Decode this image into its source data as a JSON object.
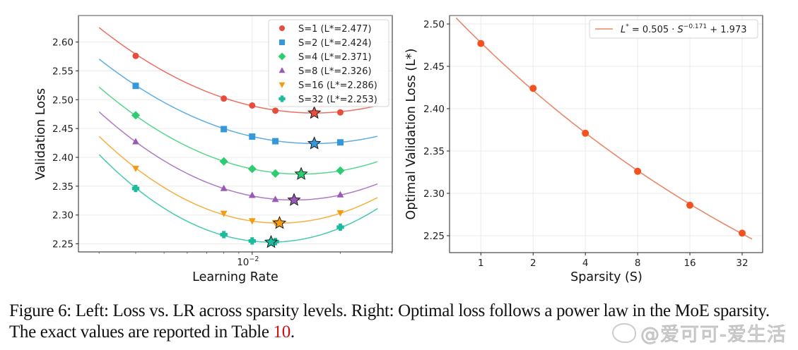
{
  "chart_data": [
    {
      "type": "line",
      "title": "",
      "xlabel": "Learning Rate",
      "ylabel": "Validation Loss",
      "xscale": "log",
      "xlim": [
        0.00255,
        0.0301
      ],
      "ylim": [
        2.236,
        2.646
      ],
      "yticks": [
        2.25,
        2.3,
        2.35,
        2.4,
        2.45,
        2.5,
        2.55,
        2.6
      ],
      "ytick_labels": [
        "2.25",
        "2.30",
        "2.35",
        "2.40",
        "2.45",
        "2.50",
        "2.55",
        "2.60"
      ],
      "xticks_major": [
        0.01
      ],
      "xtick_major_labels": [
        "10^-2"
      ],
      "xticks_minor": [
        0.003,
        0.004,
        0.005,
        0.006,
        0.007,
        0.008,
        0.009,
        0.02,
        0.03
      ],
      "grid": true,
      "legend_position": "top-right",
      "x": [
        0.004,
        0.008,
        0.01,
        0.012,
        0.02
      ],
      "series": [
        {
          "name": "S=1 (L*=2.477)",
          "marker": "circle",
          "color": "#e74c3c",
          "values": [
            2.576,
            2.502,
            2.49,
            2.481,
            2.478
          ],
          "optimum": {
            "lr": 0.0163,
            "loss": 2.477
          },
          "fit": {
            "vertex_lr": 0.0163,
            "vertex_loss": 2.477,
            "curvature": 0.274,
            "lr_range": [
              0.003,
              0.0268
            ]
          }
        },
        {
          "name": "S=2 (L*=2.424)",
          "marker": "square",
          "color": "#3498db",
          "values": [
            2.524,
            2.449,
            2.436,
            2.428,
            2.426
          ],
          "optimum": {
            "lr": 0.0163,
            "loss": 2.424
          },
          "fit": {
            "vertex_lr": 0.0163,
            "vertex_loss": 2.424,
            "curvature": 0.271,
            "lr_range": [
              0.003,
              0.0268
            ]
          }
        },
        {
          "name": "S=4 (L*=2.371)",
          "marker": "diamond",
          "color": "#2ecc71",
          "values": [
            2.473,
            2.393,
            2.38,
            2.372,
            2.377
          ],
          "optimum": {
            "lr": 0.0147,
            "loss": 2.371
          },
          "fit": {
            "vertex_lr": 0.0147,
            "vertex_loss": 2.371,
            "curvature": 0.317,
            "lr_range": [
              0.003,
              0.0268
            ]
          }
        },
        {
          "name": "S=8 (L*=2.326)",
          "marker": "triangle-up",
          "color": "#9b59b6",
          "values": [
            2.427,
            2.346,
            2.334,
            2.327,
            2.335
          ],
          "optimum": {
            "lr": 0.0139,
            "loss": 2.326
          },
          "fit": {
            "vertex_lr": 0.0139,
            "vertex_loss": 2.326,
            "curvature": 0.345,
            "lr_range": [
              0.003,
              0.0268
            ]
          }
        },
        {
          "name": "S=16 (L*=2.286)",
          "marker": "triangle-down",
          "color": "#f39c12",
          "values": [
            2.381,
            2.303,
            2.29,
            2.287,
            2.304
          ],
          "optimum": {
            "lr": 0.0124,
            "loss": 2.286
          },
          "fit": {
            "vertex_lr": 0.0124,
            "vertex_loss": 2.286,
            "curvature": 0.396,
            "lr_range": [
              0.003,
              0.0268
            ]
          }
        },
        {
          "name": "S=32 (L*=2.253)",
          "marker": "plus",
          "color": "#1abc9c",
          "values": [
            2.346,
            2.266,
            2.255,
            2.254,
            2.279
          ],
          "optimum": {
            "lr": 0.0116,
            "loss": 2.253
          },
          "fit": {
            "vertex_lr": 0.0116,
            "vertex_loss": 2.253,
            "curvature": 0.44,
            "lr_range": [
              0.003,
              0.0268
            ]
          }
        }
      ]
    },
    {
      "type": "line",
      "title": "",
      "xlabel": "Sparsity (S)",
      "ylabel": "Optimal Validation Loss (L*)",
      "xscale": "log2",
      "xlim": [
        0.66,
        42
      ],
      "ylim": [
        2.23,
        2.51
      ],
      "xticks": [
        1,
        2,
        4,
        8,
        16,
        32
      ],
      "xtick_labels": [
        "1",
        "2",
        "4",
        "8",
        "16",
        "32"
      ],
      "yticks": [
        2.25,
        2.3,
        2.35,
        2.4,
        2.45,
        2.5
      ],
      "ytick_labels": [
        "2.25",
        "2.30",
        "2.35",
        "2.40",
        "2.45",
        "2.50"
      ],
      "grid": true,
      "legend_position": "top-right",
      "points": {
        "x": [
          1,
          2,
          4,
          8,
          16,
          32
        ],
        "y": [
          2.477,
          2.424,
          2.371,
          2.326,
          2.286,
          2.253
        ],
        "color": "#f4511e"
      },
      "fit": {
        "label": "L* = 0.505 · S^-0.171 + 1.973",
        "a": 0.505,
        "b": -0.171,
        "c": 1.973,
        "x_range": [
          0.72,
          36.5
        ],
        "color": "#e9876a"
      }
    }
  ],
  "legend_right": {
    "lhs": "L",
    "sup_star": "*",
    "eq": " = 0.505 · ",
    "S": "S",
    "exp": "−0.171",
    "tail": " + 1.973"
  },
  "caption": {
    "prefix": "Figure 6: Left: Loss vs. LR across sparsity levels. Right: Optimal loss follows a power law in the MoE sparsity. The exact values are reported in Table ",
    "ref": "10",
    "suffix": "."
  },
  "watermark": "@爱可可-爱生活"
}
